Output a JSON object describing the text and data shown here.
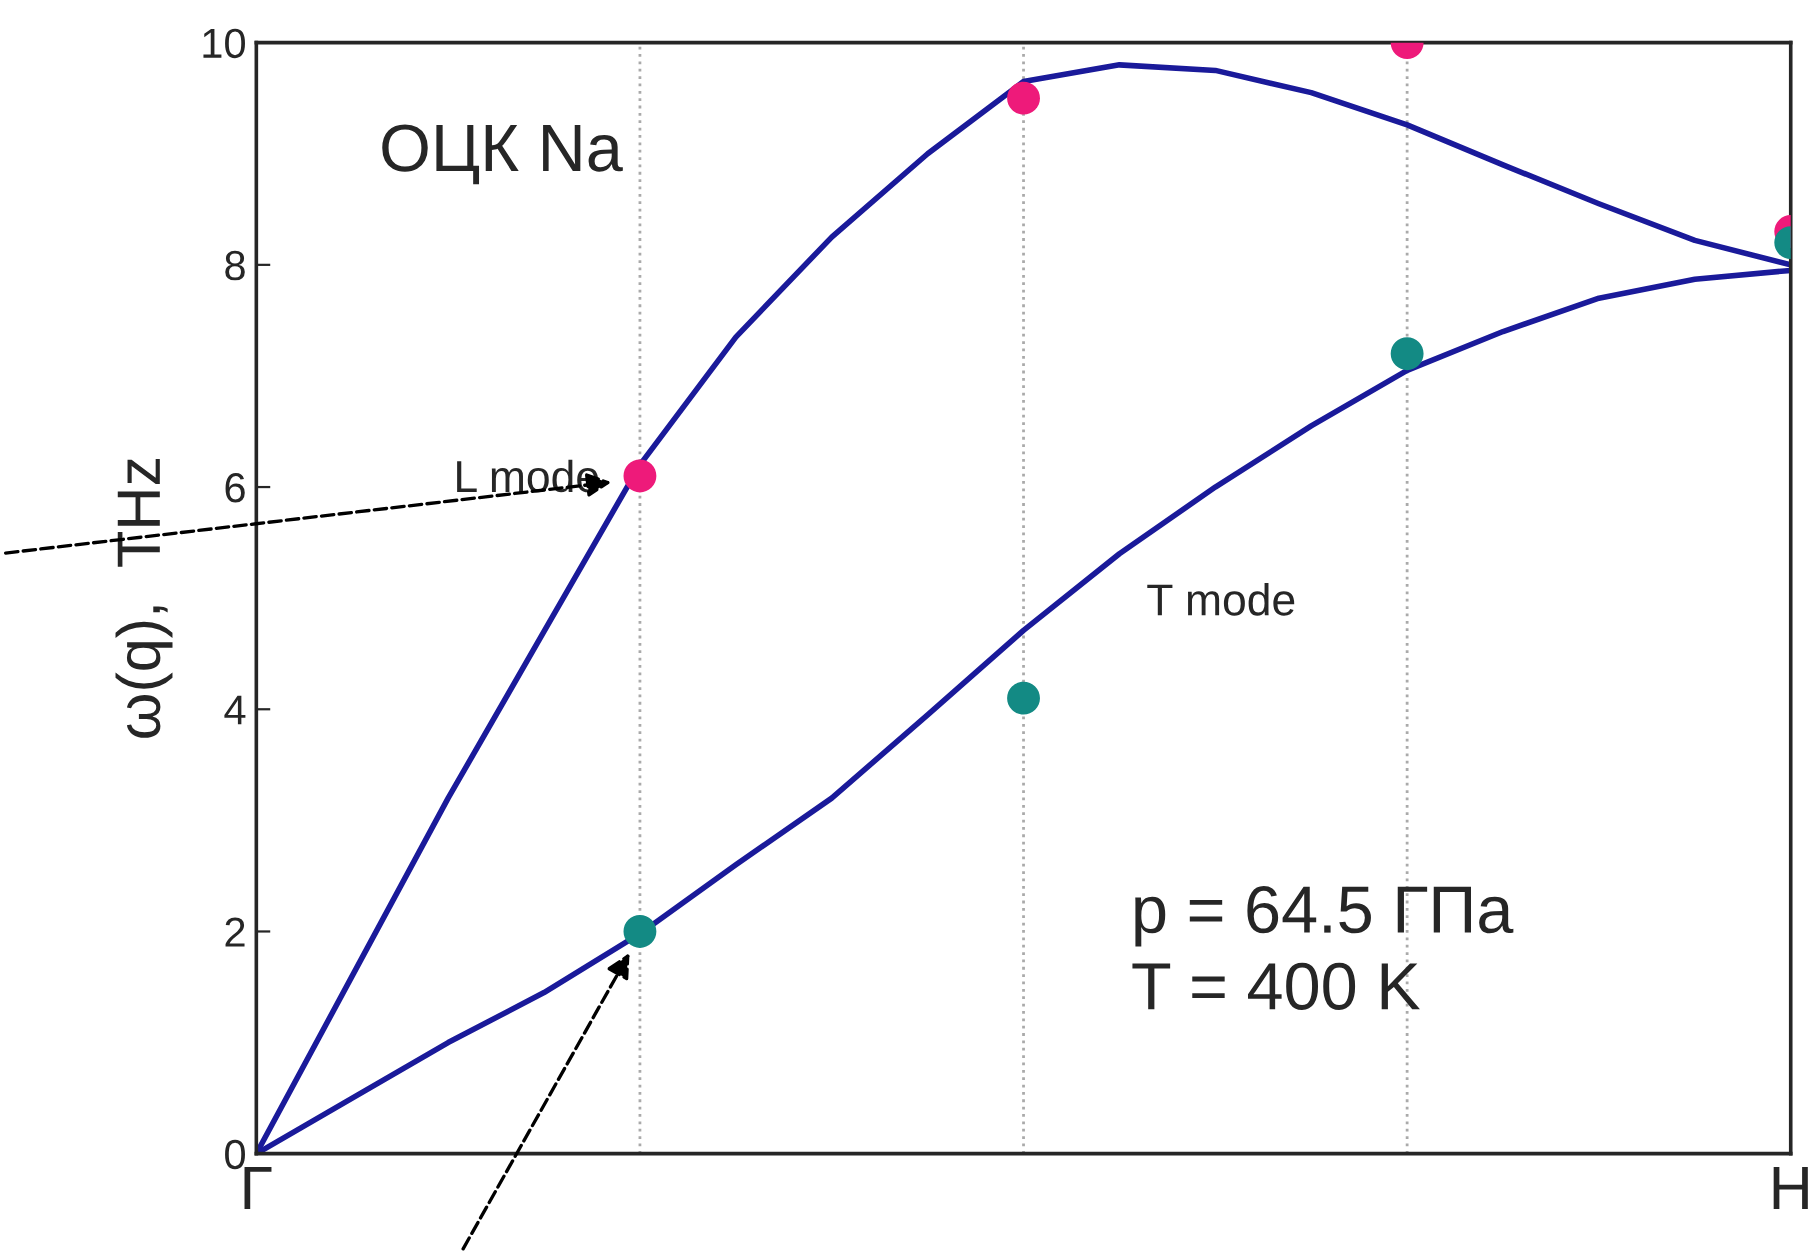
{
  "chart_data": {
    "type": "line",
    "ylabel": "ω(q),  THz",
    "categories": [
      "Γ",
      null,
      null,
      null,
      null,
      null,
      null,
      null,
      null,
      null,
      null,
      null,
      null,
      null,
      null,
      null,
      "H"
    ],
    "ylim": [
      0,
      10
    ],
    "yticks": [
      0,
      2,
      4,
      6,
      8,
      10
    ],
    "grid": "x",
    "marker": "none",
    "line_style": "solid",
    "series": [
      {
        "color": "#1a1a9a",
        "values": [
          0,
          1.6,
          3.2,
          4.7,
          6.2,
          7.35,
          8.25,
          9.0,
          9.65,
          9.8,
          9.75,
          9.55,
          9.26,
          8.9,
          8.55,
          8.22,
          8.0
        ]
      },
      {
        "color": "#1a1a9a",
        "values": [
          0,
          0.5,
          1.0,
          1.45,
          1.98,
          2.6,
          3.2,
          3.95,
          4.71,
          5.4,
          6.0,
          6.55,
          7.05,
          7.4,
          7.7,
          7.87,
          7.95
        ]
      },
      {
        "type": "scatter",
        "color": "#ee1a7a",
        "marker": "circle",
        "values": [
          null,
          null,
          null,
          null,
          6.1,
          null,
          null,
          null,
          9.5,
          null,
          null,
          null,
          10.0,
          null,
          null,
          null,
          8.3
        ]
      },
      {
        "type": "scatter",
        "color": "#138a84",
        "marker": "circle",
        "values": [
          null,
          null,
          null,
          null,
          2.0,
          null,
          null,
          null,
          4.1,
          null,
          null,
          null,
          7.2,
          null,
          null,
          null,
          8.2
        ]
      }
    ],
    "annotations": [
      "ОЦК Na",
      "L mode",
      "T mode",
      "p = 64.5 ГПа\nT = 400 K"
    ]
  }
}
